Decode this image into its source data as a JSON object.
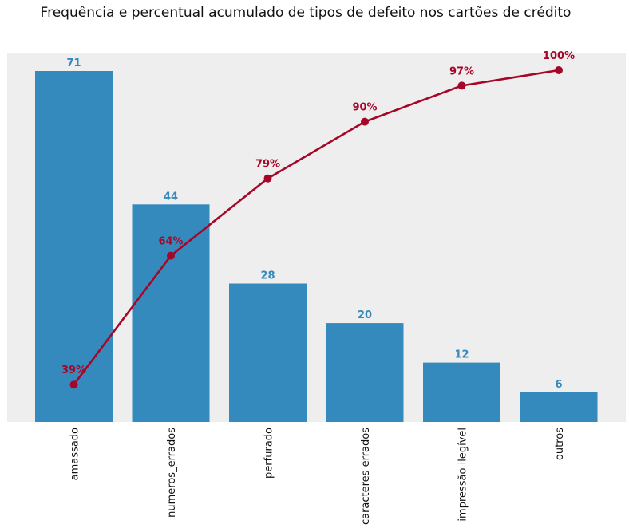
{
  "chart_data": {
    "type": "bar",
    "title": "Frequência e percentual acumulado de tipos de defeito nos cartões de crédito",
    "xlabel": "",
    "ylabel": "",
    "categories": [
      "amassado",
      "numeros_errados",
      "perfurado",
      "caracteres errados",
      "impressão ilegível",
      "outros"
    ],
    "series": [
      {
        "type": "bar",
        "values": [
          71,
          44,
          28,
          20,
          12,
          6
        ],
        "color": "#348abd",
        "labels": [
          "71",
          "44",
          "28",
          "20",
          "12",
          "6"
        ]
      },
      {
        "type": "line",
        "values": [
          39,
          64,
          79,
          90,
          97,
          100
        ],
        "color": "#a60628",
        "labels": [
          "39%",
          "64%",
          "79%",
          "90%",
          "97%",
          "100%"
        ]
      }
    ],
    "ylim": [
      0,
      71
    ],
    "y2lim": [
      35,
      100
    ],
    "grid": false,
    "legend": "none",
    "background": "#eeeeee"
  }
}
